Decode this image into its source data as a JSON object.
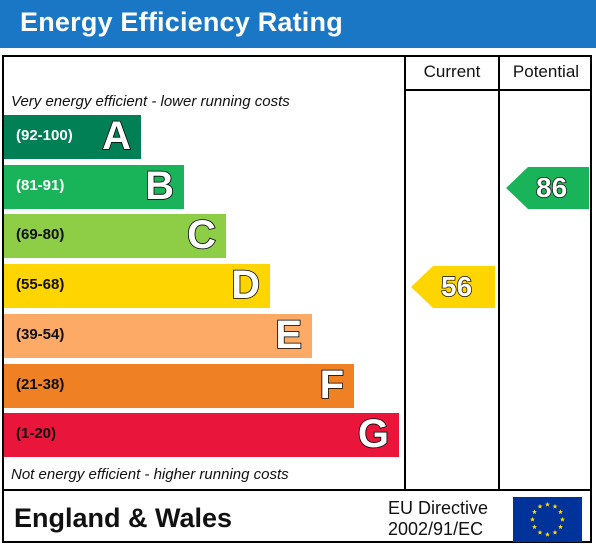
{
  "title": "Energy Efficiency Rating",
  "columns": {
    "current": "Current",
    "potential": "Potential"
  },
  "notes": {
    "top": "Very energy efficient - lower running costs",
    "bottom": "Not energy efficient - higher running costs"
  },
  "footer": {
    "region": "England & Wales",
    "directive_line1": "EU Directive",
    "directive_line2": "2002/91/EC",
    "flag_icon": "eu-flag-icon"
  },
  "colors": {
    "title_bar": "#1a77c5",
    "A": "#008054",
    "B": "#19b459",
    "C": "#8dce46",
    "D": "#ffd500",
    "E": "#fcaa65",
    "F": "#ef8023",
    "G": "#e9153b"
  },
  "chart_data": {
    "type": "bar",
    "title": "Energy Efficiency Rating",
    "categories": [
      "A",
      "B",
      "C",
      "D",
      "E",
      "F",
      "G"
    ],
    "ranges": [
      "(92-100)",
      "(81-91)",
      "(69-80)",
      "(55-68)",
      "(39-54)",
      "(21-38)",
      "(1-20)"
    ],
    "range_text_colors": [
      "#ffffff",
      "#ffffff",
      "#111111",
      "#111111",
      "#111111",
      "#111111",
      "#111111"
    ],
    "current": {
      "label": "Current",
      "value": 56,
      "band": "D"
    },
    "potential": {
      "label": "Potential",
      "value": 86,
      "band": "B"
    }
  }
}
